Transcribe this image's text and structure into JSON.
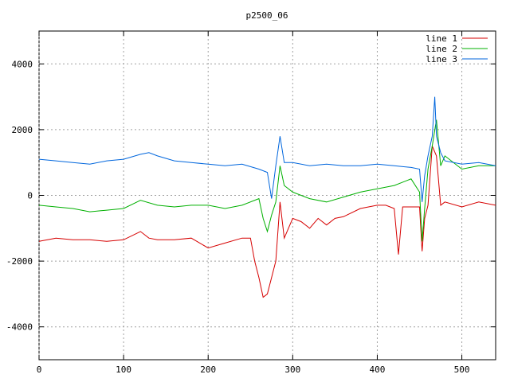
{
  "chart_data": {
    "type": "line",
    "title": "p2500_06",
    "xlabel": "",
    "ylabel": "",
    "xlim": [
      0,
      540
    ],
    "ylim": [
      -5000,
      5000
    ],
    "xticks": [
      0,
      100,
      200,
      300,
      400,
      500
    ],
    "yticks": [
      -4000,
      -2000,
      0,
      2000,
      4000
    ],
    "grid": true,
    "legend_position": "top-right",
    "series": [
      {
        "name": "line 1",
        "color": "#d60000",
        "x": [
          0,
          20,
          40,
          60,
          80,
          100,
          120,
          130,
          140,
          160,
          180,
          200,
          220,
          240,
          250,
          255,
          260,
          265,
          270,
          275,
          280,
          285,
          290,
          300,
          310,
          320,
          330,
          340,
          350,
          360,
          380,
          400,
          410,
          420,
          425,
          430,
          440,
          450,
          453,
          456,
          460,
          465,
          470,
          475,
          480,
          500,
          520,
          540
        ],
        "values": [
          -1400,
          -1300,
          -1350,
          -1350,
          -1400,
          -1350,
          -1100,
          -1300,
          -1350,
          -1350,
          -1300,
          -1600,
          -1450,
          -1300,
          -1300,
          -2000,
          -2500,
          -3100,
          -3000,
          -2500,
          -2000,
          -200,
          -1300,
          -700,
          -800,
          -1000,
          -700,
          -900,
          -700,
          -650,
          -400,
          -300,
          -300,
          -400,
          -1800,
          -350,
          -350,
          -350,
          -1700,
          -700,
          -300,
          1500,
          1200,
          -300,
          -200,
          -350,
          -200,
          -300
        ]
      },
      {
        "name": "line 2",
        "color": "#00b000",
        "x": [
          0,
          20,
          40,
          60,
          80,
          100,
          120,
          140,
          160,
          180,
          200,
          220,
          240,
          260,
          265,
          270,
          275,
          280,
          285,
          290,
          300,
          320,
          340,
          360,
          380,
          400,
          420,
          440,
          450,
          453,
          456,
          460,
          465,
          470,
          475,
          480,
          500,
          520,
          540
        ],
        "values": [
          -300,
          -350,
          -400,
          -500,
          -450,
          -400,
          -150,
          -300,
          -350,
          -300,
          -300,
          -400,
          -300,
          -100,
          -700,
          -1100,
          -600,
          -200,
          900,
          300,
          100,
          -100,
          -200,
          -50,
          100,
          200,
          300,
          500,
          100,
          -1400,
          -400,
          800,
          1500,
          2300,
          900,
          1200,
          800,
          900,
          900
        ]
      },
      {
        "name": "line 3",
        "color": "#0066dd",
        "x": [
          0,
          20,
          40,
          60,
          80,
          100,
          120,
          130,
          140,
          160,
          180,
          200,
          220,
          240,
          260,
          270,
          275,
          280,
          285,
          290,
          300,
          320,
          340,
          360,
          380,
          400,
          420,
          440,
          450,
          453,
          456,
          460,
          465,
          468,
          470,
          475,
          480,
          500,
          520,
          540
        ],
        "values": [
          1100,
          1050,
          1000,
          950,
          1050,
          1100,
          1250,
          1300,
          1200,
          1050,
          1000,
          950,
          900,
          950,
          800,
          700,
          -100,
          900,
          1800,
          1000,
          1000,
          900,
          950,
          900,
          900,
          950,
          900,
          850,
          800,
          -200,
          600,
          1200,
          1800,
          3000,
          1800,
          1300,
          1050,
          950,
          1000,
          900
        ]
      }
    ]
  }
}
